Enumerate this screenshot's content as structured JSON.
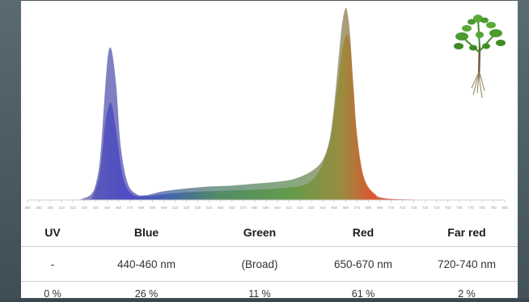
{
  "chart_data": {
    "type": "area",
    "title": "",
    "xlabel": "",
    "ylabel": "",
    "xlim": [
      380,
      800
    ],
    "x_ticks": [
      380,
      390,
      400,
      410,
      420,
      430,
      440,
      450,
      460,
      470,
      480,
      490,
      500,
      510,
      520,
      530,
      540,
      550,
      560,
      570,
      580,
      590,
      600,
      610,
      620,
      630,
      640,
      650,
      660,
      670,
      680,
      690,
      700,
      710,
      720,
      730,
      740,
      750,
      760,
      770,
      780,
      790,
      800
    ],
    "ylim": [
      0,
      1
    ],
    "grid": false,
    "legend": "none",
    "series": [
      {
        "color": "#7a7f9a",
        "x": [
          380,
          420,
          430,
          436,
          440,
          444,
          448,
          451,
          454,
          458,
          462,
          468,
          476,
          484,
          492,
          500,
          520,
          540,
          560,
          580,
          600,
          615,
          630,
          640,
          646,
          650,
          654,
          657,
          660,
          662,
          664,
          666,
          668,
          672,
          676,
          682,
          690,
          700,
          720,
          760,
          800
        ],
        "y": [
          0.0,
          0.0,
          0.01,
          0.03,
          0.08,
          0.22,
          0.55,
          0.76,
          0.78,
          0.6,
          0.28,
          0.09,
          0.03,
          0.025,
          0.035,
          0.045,
          0.06,
          0.07,
          0.075,
          0.085,
          0.095,
          0.11,
          0.15,
          0.21,
          0.32,
          0.5,
          0.75,
          0.92,
          1.0,
          0.96,
          0.85,
          0.66,
          0.45,
          0.22,
          0.1,
          0.04,
          0.015,
          0.005,
          0.0,
          0.0,
          0.0
        ]
      },
      {
        "color": "#d94a2e",
        "x": [
          380,
          430,
          438,
          444,
          448,
          451,
          454,
          458,
          464,
          472,
          484,
          500,
          520,
          560,
          600,
          630,
          645,
          652,
          657,
          661,
          664,
          667,
          670,
          676,
          686,
          700,
          800
        ],
        "y": [
          0.0,
          0.0,
          0.03,
          0.15,
          0.38,
          0.48,
          0.5,
          0.36,
          0.12,
          0.03,
          0.02,
          0.03,
          0.04,
          0.05,
          0.06,
          0.1,
          0.28,
          0.55,
          0.78,
          0.86,
          0.8,
          0.58,
          0.34,
          0.12,
          0.03,
          0.005,
          0.0
        ]
      }
    ]
  },
  "plant_icon": "plant-seedling-icon",
  "table": {
    "headers": [
      "UV",
      "Blue",
      "Green",
      "Red",
      "Far red"
    ],
    "bands": [
      "-",
      "440-460 nm",
      "(Broad)",
      "650-670 nm",
      "720-740 nm"
    ],
    "percents": [
      "0 %",
      "26 %",
      "11 %",
      "61 %",
      "2 %"
    ]
  }
}
